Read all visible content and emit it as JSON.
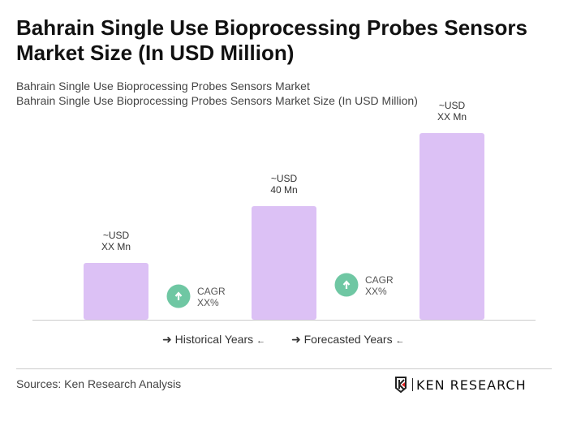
{
  "title": "Bahrain Single Use Bioprocessing Probes Sensors Market Size (In USD Million)",
  "subtitle_1": "Bahrain Single Use Bioprocessing Probes Sensors Market",
  "subtitle_2": "Bahrain Single Use Bioprocessing Probes Sensors Market Size (In USD Million)",
  "chart_data": {
    "type": "bar",
    "categories": [
      "",
      "",
      ""
    ],
    "values": [
      20,
      40,
      65.7
    ],
    "data_labels": [
      [
        "~USD",
        "XX Mn"
      ],
      [
        "~USD",
        "40 Mn"
      ],
      [
        "~USD",
        "XX Mn"
      ]
    ],
    "bar_color": "#dcc1f5",
    "cagr": [
      {
        "label": "CAGR",
        "value": "XX%"
      },
      {
        "label": "CAGR",
        "value": "XX%"
      }
    ],
    "cagr_color": "#6fc7a3",
    "grid": false,
    "ylim": [
      0,
      70
    ]
  },
  "legend": {
    "historical": "Historical Years",
    "forecasted": "Forecasted Years"
  },
  "sources": "Sources: Ken Research Analysis",
  "logo_text": "KEN RESEARCH"
}
